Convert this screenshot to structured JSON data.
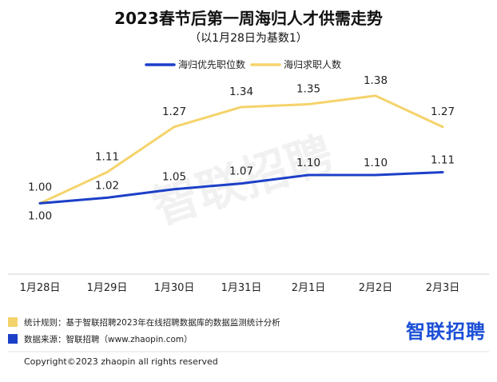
{
  "chart_data": {
    "type": "line",
    "title": "2023春节后第一周海归人才供需走势",
    "subtitle": "（以1月28日为基数1）",
    "categories": [
      "1月28日",
      "1月29日",
      "1月30日",
      "1月31日",
      "2月1日",
      "2月2日",
      "2月3日"
    ],
    "series": [
      {
        "name": "海归优先职位数",
        "color": "#1c3fc8",
        "values": [
          1.0,
          1.02,
          1.05,
          1.07,
          1.1,
          1.1,
          1.11
        ],
        "labels": [
          "1.00",
          "1.02",
          "1.05",
          "1.07",
          "1.10",
          "1.10",
          "1.11"
        ]
      },
      {
        "name": "海归求职人数",
        "color": "#f5d36b",
        "values": [
          1.0,
          1.11,
          1.27,
          1.34,
          1.35,
          1.38,
          1.27
        ],
        "labels": [
          "1.00",
          "1.11",
          "1.27",
          "1.34",
          "1.35",
          "1.38",
          "1.27"
        ]
      }
    ],
    "ylim": [
      0.75,
      1.45
    ],
    "grid": false,
    "legend": "top-center"
  },
  "notes": [
    {
      "color": "#f5d36b",
      "text": "统计规则：基于智联招聘2023年在线招聘数据库的数据监测统计分析"
    },
    {
      "color": "#1c3fc8",
      "text": "数据来源：智联招聘（www.zhaopin.com）"
    }
  ],
  "brand": "智联招聘",
  "watermark": "智联招聘",
  "copyright": "Copyright©2023 zhaopin all rights reserved"
}
